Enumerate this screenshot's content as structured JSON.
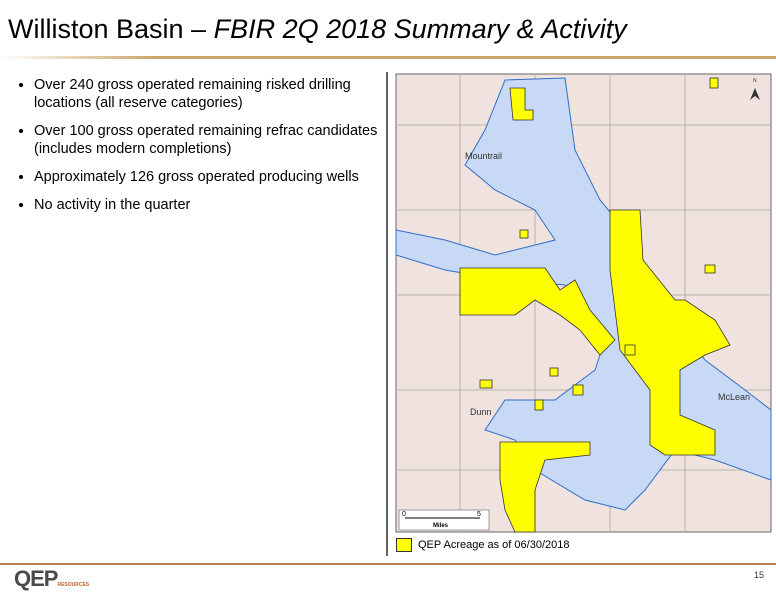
{
  "header": {
    "title_main": "Williston Basin – ",
    "title_italic": "FBIR 2Q 2018 Summary & Activity"
  },
  "bullets": [
    "Over 240 gross operated remaining risked drilling locations (all reserve categories)",
    "Over 100 gross operated remaining refrac candidates (includes modern completions)",
    "Approximately 126 gross operated producing wells",
    "No activity in the quarter"
  ],
  "map": {
    "labels": [
      "Mountrail",
      "Dunn",
      "McLean"
    ],
    "north": "N",
    "scale": [
      "0",
      "Miles",
      "5"
    ],
    "legend": "QEP Acreage as of 06/30/2018"
  },
  "footer": {
    "logo": "QEP",
    "logo_sub": "RESOURCES",
    "page": "15"
  }
}
